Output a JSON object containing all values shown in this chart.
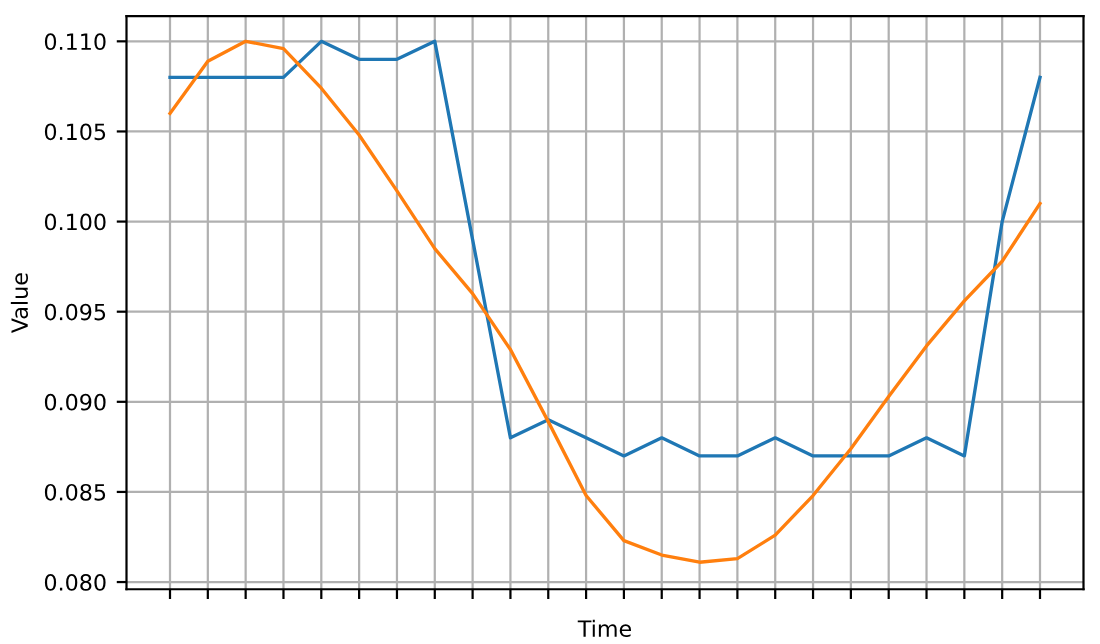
{
  "chart_data": {
    "type": "line",
    "xlabel": "Time",
    "ylabel": "Value",
    "categories": [
      null,
      null,
      null,
      null,
      null,
      null,
      null,
      null,
      null,
      null,
      null,
      null,
      null,
      null,
      null,
      null,
      null,
      null,
      null,
      null,
      null,
      null,
      null,
      null
    ],
    "series": [
      {
        "color": "#1f77b4",
        "values": [
          0.108,
          0.108,
          0.108,
          0.108,
          0.11,
          0.109,
          0.109,
          0.11,
          0.099,
          0.088,
          0.089,
          0.088,
          0.087,
          0.088,
          0.087,
          0.087,
          0.088,
          0.087,
          0.087,
          0.087,
          0.088,
          0.087,
          0.1,
          0.108
        ]
      },
      {
        "color": "#ff7f0e",
        "values": [
          0.106,
          0.1089,
          0.11,
          0.1096,
          0.1074,
          0.1048,
          0.1017,
          0.0985,
          0.096,
          0.0929,
          0.0889,
          0.0848,
          0.0823,
          0.0815,
          0.0811,
          0.0813,
          0.0826,
          0.0848,
          0.0874,
          0.0903,
          0.0931,
          0.0956,
          0.0978,
          0.101
        ]
      }
    ],
    "ylim": [
      0.0796,
      0.1114
    ],
    "yticks": [
      {
        "value": 0.08,
        "label": "0.080"
      },
      {
        "value": 0.085,
        "label": "0.085"
      },
      {
        "value": 0.09,
        "label": "0.090"
      },
      {
        "value": 0.095,
        "label": "0.095"
      },
      {
        "value": 0.1,
        "label": "0.100"
      },
      {
        "value": 0.105,
        "label": "0.105"
      },
      {
        "value": 0.11,
        "label": "0.110"
      }
    ],
    "grid": true
  }
}
